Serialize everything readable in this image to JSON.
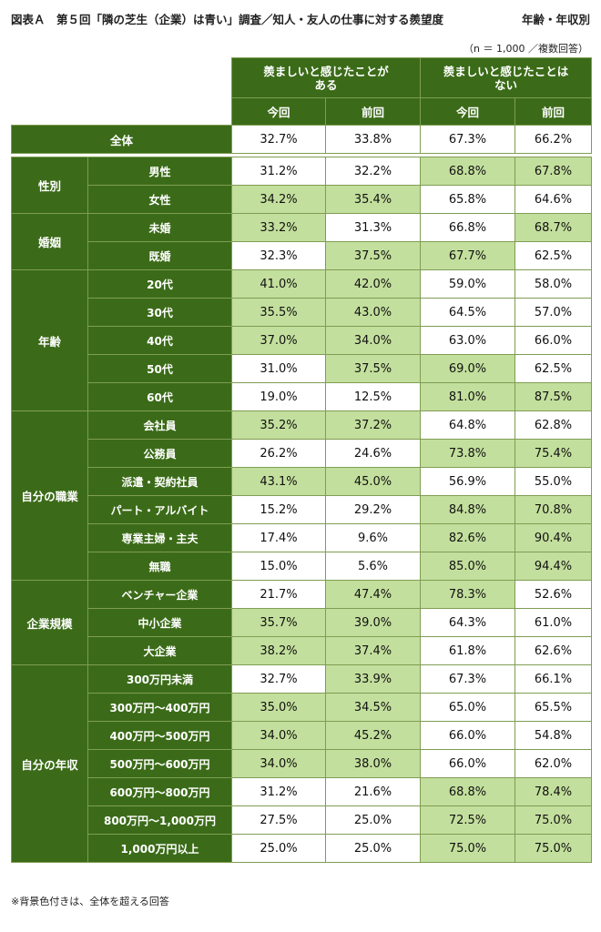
{
  "title": "図表Ａ　第５回「隣の芝生（企業）は青い」調査／知人・友人の仕事に対する羨望度",
  "subtitle": "年齢・年収別",
  "sample_note": "（n ＝ 1,000 ／複数回答）",
  "footnote": "※背景色付きは、全体を超える回答",
  "colors": {
    "header_bg": "#3b6b18",
    "highlight": "#c3df9d",
    "border": "#7f9d53"
  },
  "columns": {
    "group1": "羨ましいと感じたことがある",
    "group2": "羨ましいと感じたことはない",
    "current": "今回",
    "previous": "前回"
  },
  "chart_data": {
    "type": "table",
    "title": "図表Ａ　第５回「隣の芝生（企業）は青い」調査／知人・友人の仕事に対する羨望度",
    "total": {
      "label": "全体",
      "values": [
        "32.7%",
        "33.8%",
        "67.3%",
        "66.2%"
      ]
    },
    "groups": [
      {
        "name": "性別",
        "rows": [
          {
            "label": "男性",
            "values": [
              "31.2%",
              "32.2%",
              "68.8%",
              "67.8%"
            ],
            "hl": [
              false,
              false,
              true,
              true
            ]
          },
          {
            "label": "女性",
            "values": [
              "34.2%",
              "35.4%",
              "65.8%",
              "64.6%"
            ],
            "hl": [
              true,
              true,
              false,
              false
            ]
          }
        ]
      },
      {
        "name": "婚姻",
        "rows": [
          {
            "label": "未婚",
            "values": [
              "33.2%",
              "31.3%",
              "66.8%",
              "68.7%"
            ],
            "hl": [
              true,
              false,
              false,
              true
            ]
          },
          {
            "label": "既婚",
            "values": [
              "32.3%",
              "37.5%",
              "67.7%",
              "62.5%"
            ],
            "hl": [
              false,
              true,
              true,
              false
            ]
          }
        ]
      },
      {
        "name": "年齢",
        "rows": [
          {
            "label": "20代",
            "values": [
              "41.0%",
              "42.0%",
              "59.0%",
              "58.0%"
            ],
            "hl": [
              true,
              true,
              false,
              false
            ]
          },
          {
            "label": "30代",
            "values": [
              "35.5%",
              "43.0%",
              "64.5%",
              "57.0%"
            ],
            "hl": [
              true,
              true,
              false,
              false
            ]
          },
          {
            "label": "40代",
            "values": [
              "37.0%",
              "34.0%",
              "63.0%",
              "66.0%"
            ],
            "hl": [
              true,
              true,
              false,
              false
            ]
          },
          {
            "label": "50代",
            "values": [
              "31.0%",
              "37.5%",
              "69.0%",
              "62.5%"
            ],
            "hl": [
              false,
              true,
              true,
              false
            ]
          },
          {
            "label": "60代",
            "values": [
              "19.0%",
              "12.5%",
              "81.0%",
              "87.5%"
            ],
            "hl": [
              false,
              false,
              true,
              true
            ]
          }
        ]
      },
      {
        "name": "自分の職業",
        "rows": [
          {
            "label": "会社員",
            "values": [
              "35.2%",
              "37.2%",
              "64.8%",
              "62.8%"
            ],
            "hl": [
              true,
              true,
              false,
              false
            ]
          },
          {
            "label": "公務員",
            "values": [
              "26.2%",
              "24.6%",
              "73.8%",
              "75.4%"
            ],
            "hl": [
              false,
              false,
              true,
              true
            ]
          },
          {
            "label": "派遣・契約社員",
            "values": [
              "43.1%",
              "45.0%",
              "56.9%",
              "55.0%"
            ],
            "hl": [
              true,
              true,
              false,
              false
            ]
          },
          {
            "label": "パート・アルバイト",
            "values": [
              "15.2%",
              "29.2%",
              "84.8%",
              "70.8%"
            ],
            "hl": [
              false,
              false,
              true,
              true
            ]
          },
          {
            "label": "専業主婦・主夫",
            "values": [
              "17.4%",
              "9.6%",
              "82.6%",
              "90.4%"
            ],
            "hl": [
              false,
              false,
              true,
              true
            ]
          },
          {
            "label": "無職",
            "values": [
              "15.0%",
              "5.6%",
              "85.0%",
              "94.4%"
            ],
            "hl": [
              false,
              false,
              true,
              true
            ]
          }
        ]
      },
      {
        "name": "企業規模",
        "rows": [
          {
            "label": "ベンチャー企業",
            "values": [
              "21.7%",
              "47.4%",
              "78.3%",
              "52.6%"
            ],
            "hl": [
              false,
              true,
              true,
              false
            ]
          },
          {
            "label": "中小企業",
            "values": [
              "35.7%",
              "39.0%",
              "64.3%",
              "61.0%"
            ],
            "hl": [
              true,
              true,
              false,
              false
            ]
          },
          {
            "label": "大企業",
            "values": [
              "38.2%",
              "37.4%",
              "61.8%",
              "62.6%"
            ],
            "hl": [
              true,
              true,
              false,
              false
            ]
          }
        ]
      },
      {
        "name": "自分の年収",
        "rows": [
          {
            "label": "300万円未満",
            "values": [
              "32.7%",
              "33.9%",
              "67.3%",
              "66.1%"
            ],
            "hl": [
              false,
              true,
              false,
              false
            ]
          },
          {
            "label": "300万円～400万円",
            "values": [
              "35.0%",
              "34.5%",
              "65.0%",
              "65.5%"
            ],
            "hl": [
              true,
              true,
              false,
              false
            ]
          },
          {
            "label": "400万円～500万円",
            "values": [
              "34.0%",
              "45.2%",
              "66.0%",
              "54.8%"
            ],
            "hl": [
              true,
              true,
              false,
              false
            ]
          },
          {
            "label": "500万円～600万円",
            "values": [
              "34.0%",
              "38.0%",
              "66.0%",
              "62.0%"
            ],
            "hl": [
              true,
              true,
              false,
              false
            ]
          },
          {
            "label": "600万円～800万円",
            "values": [
              "31.2%",
              "21.6%",
              "68.8%",
              "78.4%"
            ],
            "hl": [
              false,
              false,
              true,
              true
            ]
          },
          {
            "label": "800万円～1,000万円",
            "values": [
              "27.5%",
              "25.0%",
              "72.5%",
              "75.0%"
            ],
            "hl": [
              false,
              false,
              true,
              true
            ]
          },
          {
            "label": "1,000万円以上",
            "values": [
              "25.0%",
              "25.0%",
              "75.0%",
              "75.0%"
            ],
            "hl": [
              false,
              false,
              true,
              true
            ]
          }
        ]
      }
    ]
  }
}
